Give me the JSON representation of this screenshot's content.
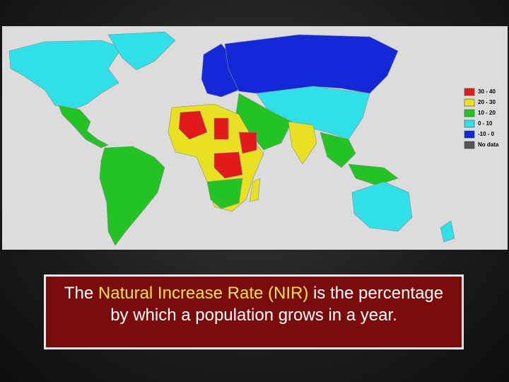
{
  "legend": [
    {
      "label": "30 - 40",
      "color": "#e31a1c"
    },
    {
      "label": "20 - 30",
      "color": "#e8e020"
    },
    {
      "label": "10 - 20",
      "color": "#22c322"
    },
    {
      "label": "0 - 10",
      "color": "#2fe0e8"
    },
    {
      "label": "-10 - 0",
      "color": "#1428d8"
    },
    {
      "label": "No data",
      "color": "#555555"
    }
  ],
  "caption": {
    "before": "The ",
    "highlight": "Natural Increase Rate (NIR)",
    "after": " is the percentage by which a population grows in a year."
  }
}
